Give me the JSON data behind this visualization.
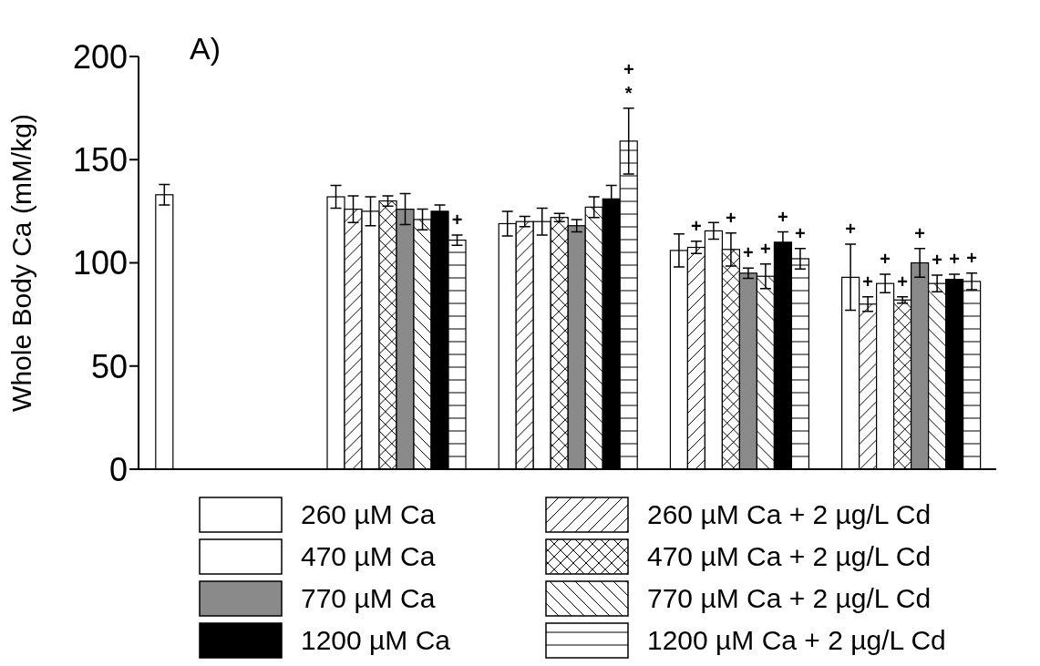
{
  "chart_data": {
    "type": "bar",
    "ylabel": "Whole Body Ca (mM/kg)",
    "annotations": [
      "A)"
    ],
    "categories": [
      null,
      null,
      null,
      null,
      null
    ],
    "ylim": [
      0,
      200
    ],
    "yticks": [
      0,
      50,
      100,
      150,
      200
    ],
    "grid": false,
    "legend": "bottom",
    "series": [
      {
        "name": "260 µM Ca",
        "color": "#ffffff",
        "values": [
          133,
          132,
          119,
          106,
          93
        ],
        "errors": [
          5,
          5.5,
          6,
          8,
          16
        ],
        "value_labels": [
          null,
          null,
          null,
          null,
          "+"
        ]
      },
      {
        "name": "260 µM Ca + 2 µg/L Cd",
        "color": "#ffffff",
        "values": [
          null,
          126,
          120,
          107.5,
          80
        ],
        "errors": [
          null,
          6.5,
          2.5,
          3,
          3.5
        ],
        "value_labels": [
          null,
          null,
          null,
          "+",
          "+"
        ]
      },
      {
        "name": "470 µM Ca",
        "color": "#ffffff",
        "values": [
          null,
          125,
          120,
          115.5,
          90
        ],
        "errors": [
          null,
          7,
          6.5,
          4,
          4.5
        ],
        "value_labels": [
          null,
          null,
          null,
          null,
          "+"
        ]
      },
      {
        "name": "470 µM Ca + 2 µg/L Cd",
        "color": "#ffffff",
        "values": [
          null,
          130,
          122,
          106.5,
          82
        ],
        "errors": [
          null,
          2.5,
          2,
          8,
          1.5
        ],
        "value_labels": [
          null,
          null,
          null,
          "+",
          "+"
        ]
      },
      {
        "name": "770 µM Ca",
        "color": "#8a8a8a",
        "values": [
          null,
          126,
          118,
          95,
          100
        ],
        "errors": [
          null,
          7.5,
          3,
          2.5,
          7
        ],
        "value_labels": [
          null,
          null,
          null,
          "+",
          "+"
        ]
      },
      {
        "name": "770 µM Ca + 2 µg/L Cd",
        "color": "#ffffff",
        "values": [
          null,
          121,
          127,
          93.5,
          90
        ],
        "errors": [
          null,
          5,
          5,
          6,
          4
        ],
        "value_labels": [
          null,
          null,
          null,
          "+",
          "+"
        ]
      },
      {
        "name": "1200 µM Ca",
        "color": "#000000",
        "values": [
          null,
          125,
          131,
          110,
          92
        ],
        "errors": [
          null,
          3,
          6.5,
          5,
          2.5
        ],
        "value_labels": [
          null,
          null,
          null,
          "+",
          "+"
        ]
      },
      {
        "name": "1200 µM Ca + 2 µg/L Cd",
        "color": "#ffffff",
        "values": [
          null,
          111,
          159,
          102,
          91
        ],
        "errors": [
          null,
          2.5,
          16,
          5,
          4
        ],
        "value_labels": [
          null,
          "+",
          "+\n*",
          "+",
          "+"
        ]
      }
    ]
  }
}
